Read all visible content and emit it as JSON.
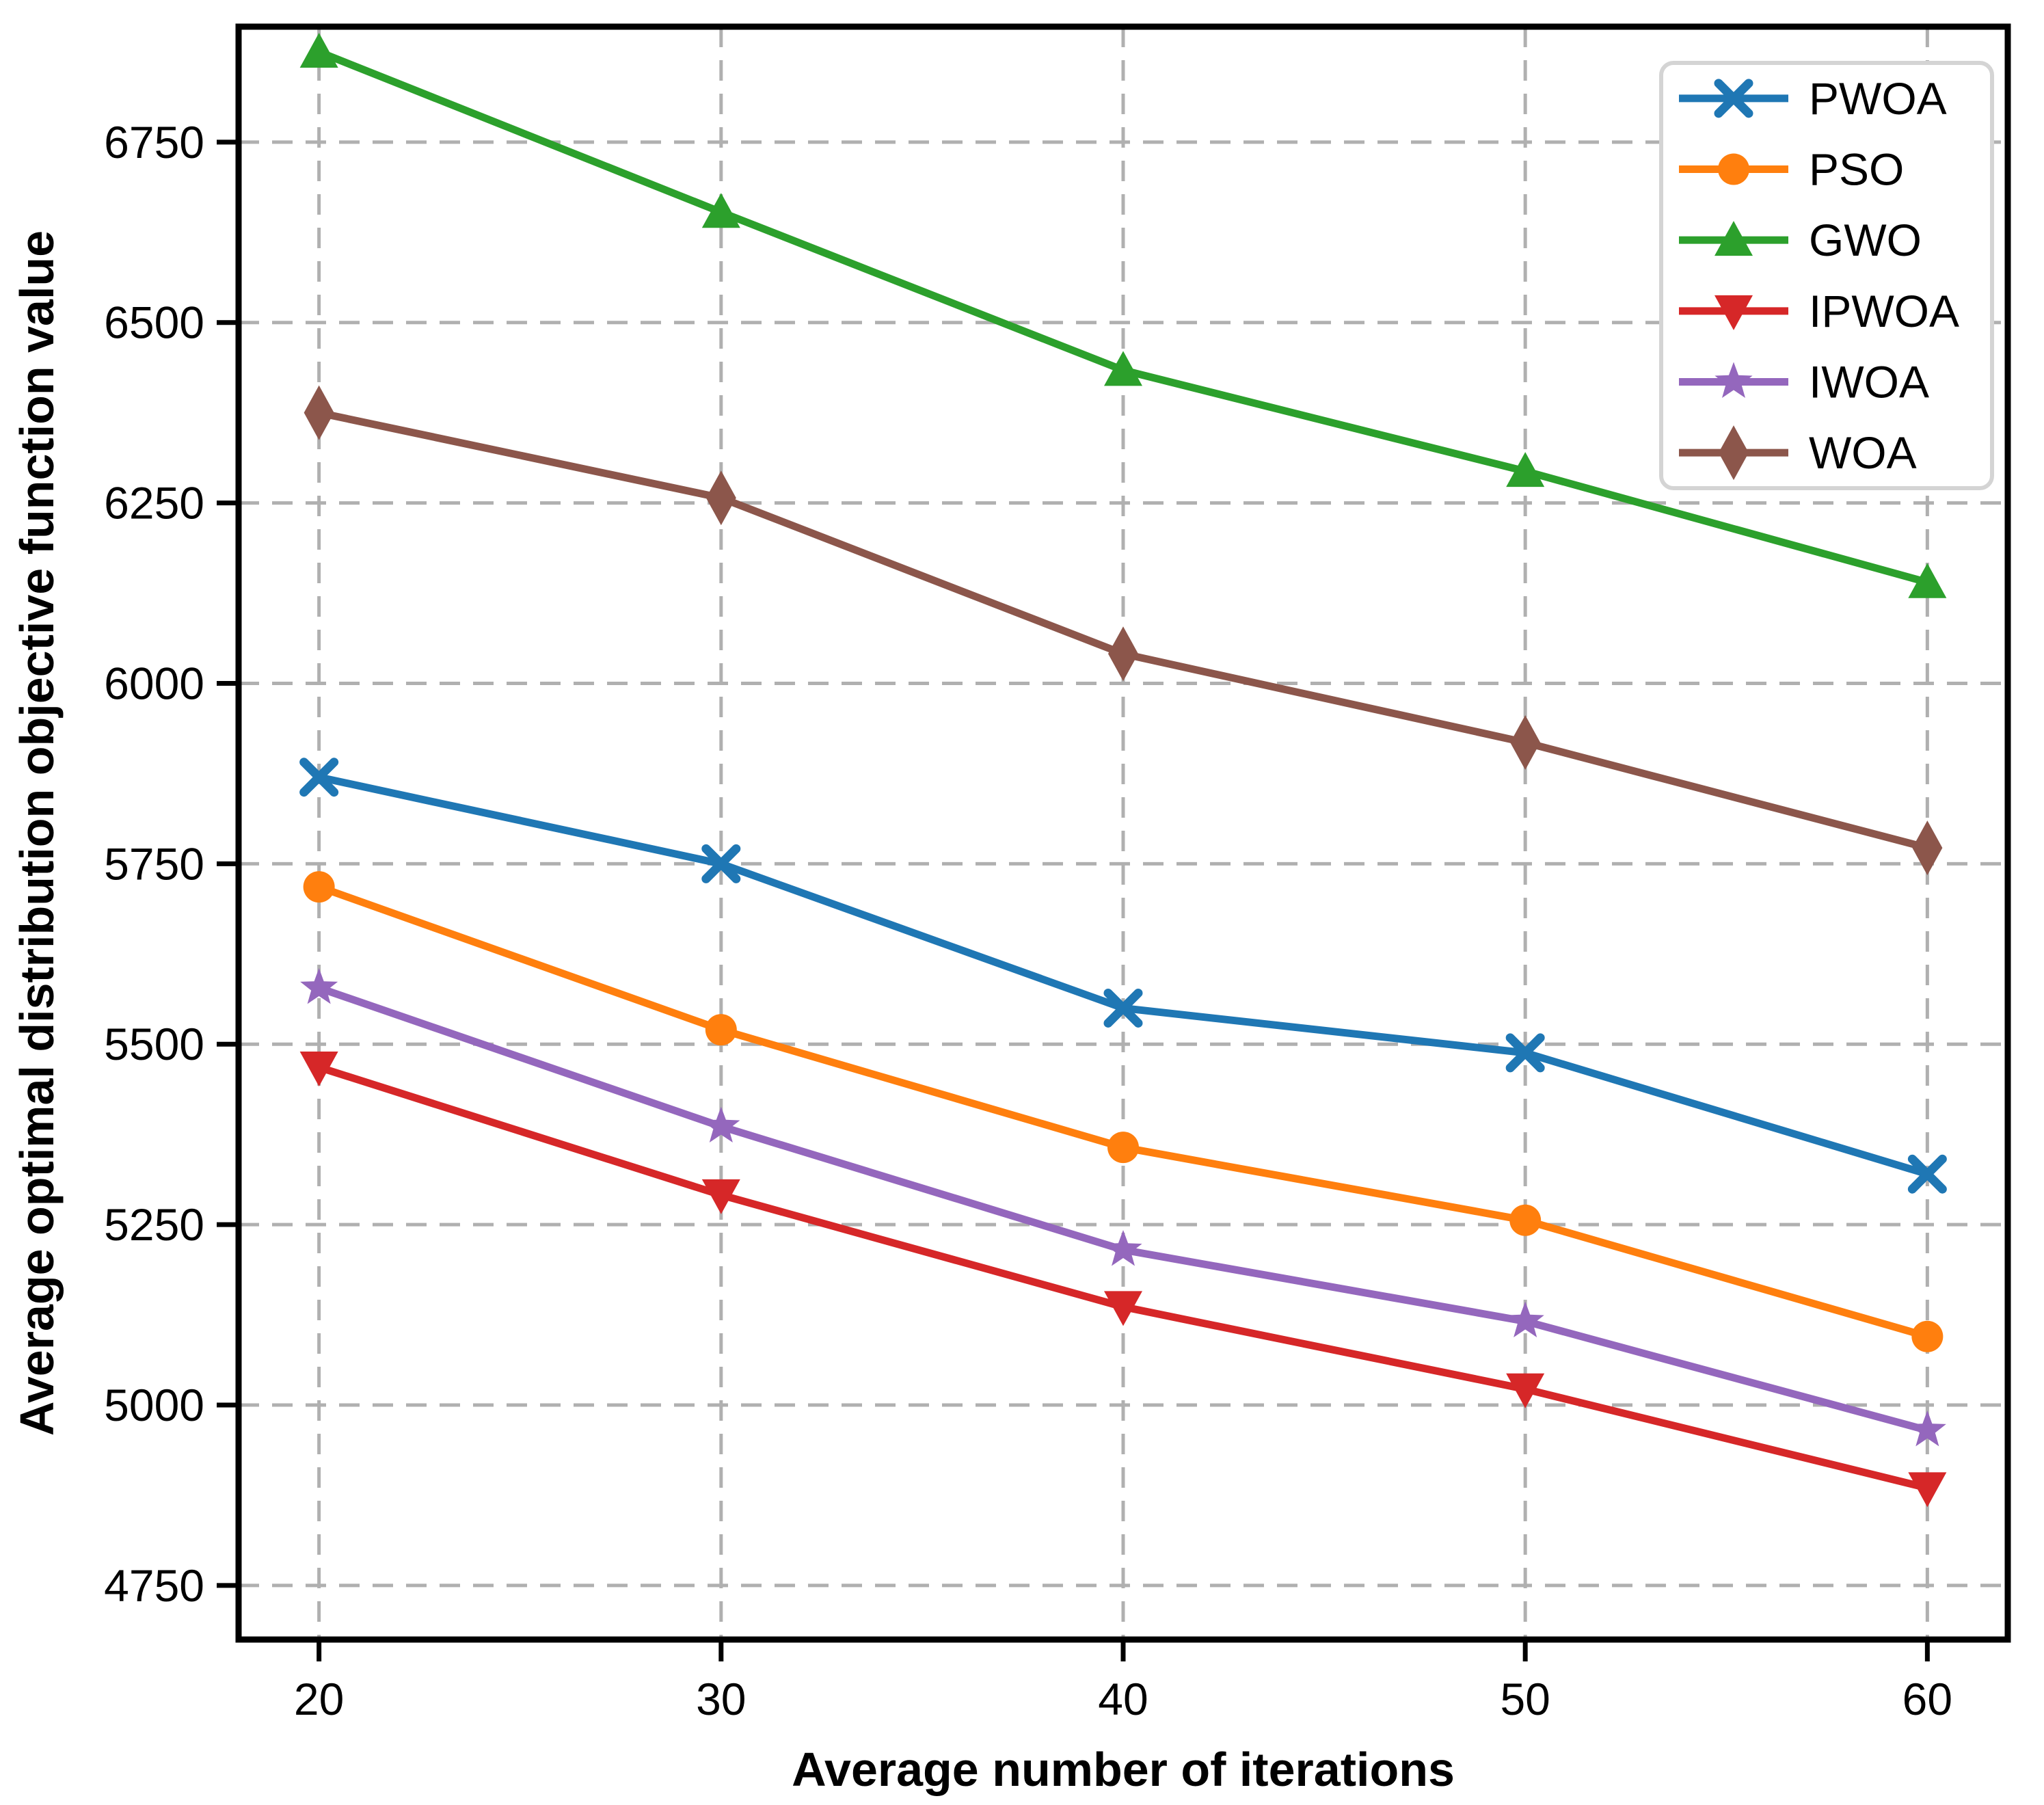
{
  "chart_data": {
    "type": "line",
    "title": "",
    "xlabel": "Average number of iterations",
    "ylabel": "Average optimal distribution objective function value",
    "x": [
      20,
      30,
      40,
      50,
      60
    ],
    "x_ticks": [
      "20",
      "30",
      "40",
      "50",
      "60"
    ],
    "y_ticks": [
      "4750",
      "5000",
      "5250",
      "5500",
      "5750",
      "6000",
      "6250",
      "6500",
      "6750"
    ],
    "y_tick_values": [
      4750,
      5000,
      5250,
      5500,
      5750,
      6000,
      6250,
      6500,
      6750
    ],
    "xlim": [
      18,
      62
    ],
    "ylim": [
      4675,
      6910
    ],
    "grid": true,
    "grid_style": "dashed",
    "legend_position": "upper right",
    "series": [
      {
        "name": "PWOA",
        "color": "#1f77b4",
        "marker": "x",
        "values": [
          5870,
          5750,
          5550,
          5488,
          5320
        ]
      },
      {
        "name": "PSO",
        "color": "#ff7f0e",
        "marker": "circle",
        "values": [
          5718,
          5520,
          5357,
          5256,
          5095
        ]
      },
      {
        "name": "GWO",
        "color": "#2ca02c",
        "marker": "triangle-up",
        "values": [
          6875,
          6653,
          6434,
          6294,
          6140
        ]
      },
      {
        "name": "IPWOA",
        "color": "#d62728",
        "marker": "triangle-down",
        "values": [
          5468,
          5291,
          5136,
          5022,
          4885
        ]
      },
      {
        "name": "IWOA",
        "color": "#9467bd",
        "marker": "star",
        "values": [
          5578,
          5386,
          5215,
          5116,
          4965
        ]
      },
      {
        "name": "WOA",
        "color": "#8c564b",
        "marker": "thin-diamond",
        "values": [
          6375,
          6257,
          6041,
          5918,
          5772
        ]
      }
    ],
    "colors": {
      "grid": "#b0b0b0",
      "axis": "#000000",
      "text": "#000000",
      "background": "#ffffff",
      "legend_border": "#d4d4d4",
      "legend_background": "#ffffff"
    }
  }
}
